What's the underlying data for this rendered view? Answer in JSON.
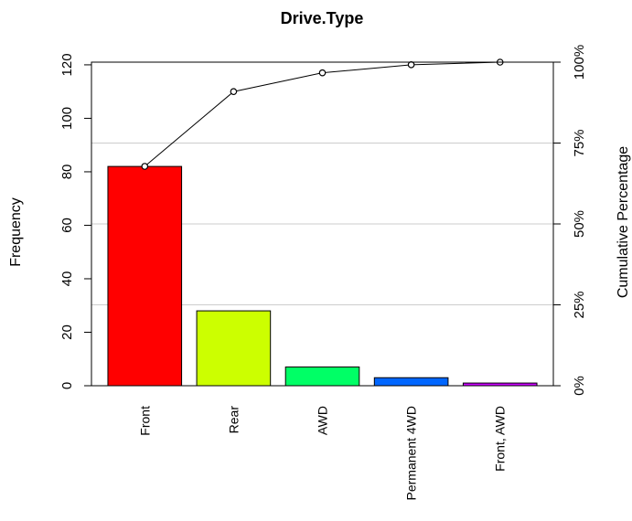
{
  "chart_data": {
    "type": "bar",
    "title": "Drive.Type",
    "ylabel": "Frequency",
    "ylabel_right": "Cumulative Percentage",
    "categories": [
      "Front",
      "Rear",
      "AWD",
      "Permanent 4WD",
      "Front, AWD"
    ],
    "values": [
      82,
      28,
      7,
      3,
      1
    ],
    "cumulative_percent": [
      67.8,
      90.9,
      96.7,
      99.2,
      100
    ],
    "bar_colors": [
      "#FF0000",
      "#CCFF00",
      "#00FF66",
      "#0066FF",
      "#CC00FF"
    ],
    "ylim": [
      0,
      121
    ],
    "yticks": [
      "0",
      "20",
      "40",
      "60",
      "80",
      "100",
      "120"
    ],
    "ytick_values": [
      0,
      20,
      40,
      60,
      80,
      100,
      120
    ],
    "right_ticks": [
      "0%",
      "25%",
      "50%",
      "75%",
      "100%"
    ],
    "right_tick_values": [
      0,
      25,
      50,
      75,
      100
    ],
    "grid": true,
    "grid_color": "#cccccc",
    "line_color": "#000000"
  }
}
